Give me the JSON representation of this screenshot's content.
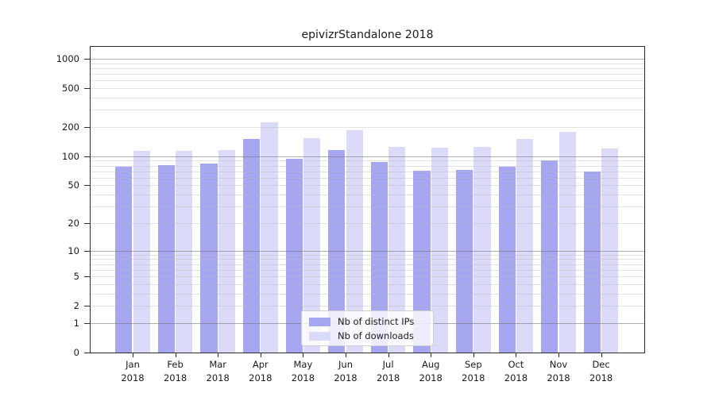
{
  "chart_data": {
    "type": "bar",
    "title": "epivizrStandalone 2018",
    "categories": [
      "Jan",
      "Feb",
      "Mar",
      "Apr",
      "May",
      "Jun",
      "Jul",
      "Aug",
      "Sep",
      "Oct",
      "Nov",
      "Dec"
    ],
    "category_year": "2018",
    "series": [
      {
        "name": "Nb of distinct IPs",
        "color": "#a6a6f1",
        "values": [
          78,
          81,
          84,
          150,
          95,
          116,
          88,
          71,
          72,
          78,
          91,
          70
        ]
      },
      {
        "name": "Nb of downloads",
        "color": "#dbdbf9",
        "values": [
          114,
          114,
          116,
          222,
          154,
          184,
          124,
          123,
          125,
          150,
          180,
          120
        ]
      }
    ],
    "y_axis": {
      "scale": "log10(1+v)",
      "tick_values": [
        0,
        1,
        2,
        5,
        10,
        20,
        50,
        100,
        200,
        500,
        1000
      ],
      "tick_labels": [
        "0",
        "1",
        "2",
        "5",
        "10",
        "20",
        "50",
        "100",
        "200",
        "500",
        "1000"
      ],
      "range_top": 1000
    },
    "x_axis": {
      "label_format": "month over year"
    },
    "legend": {
      "position": "bottom-center"
    },
    "grid": {
      "major_at": [
        1,
        10,
        100,
        1000
      ],
      "minor_style": "log decades 2-9",
      "on": true
    }
  }
}
